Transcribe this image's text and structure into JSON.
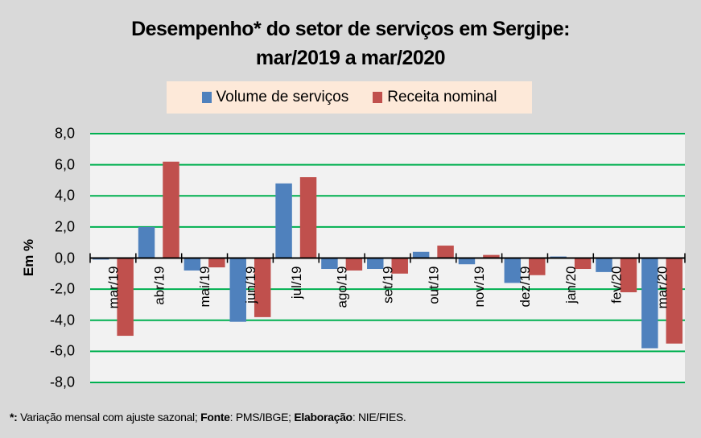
{
  "chart_data": {
    "type": "bar",
    "title_line1": "Desempenho* do setor de serviços em Sergipe:",
    "title_line2": "mar/2019 a mar/2020",
    "xlabel": "",
    "ylabel": "Em %",
    "ylim": [
      -8,
      8
    ],
    "yticks": [
      8,
      6,
      4,
      2,
      0,
      -2,
      -4,
      -6,
      -8
    ],
    "ytick_labels": [
      "8,0",
      "6,0",
      "4,0",
      "2,0",
      "0,0",
      "-2,0",
      "-4,0",
      "-6,0",
      "-8,0"
    ],
    "grid": true,
    "legend_position": "top",
    "categories": [
      "mar/19",
      "abr/19",
      "mai/19",
      "jun/19",
      "jul/19",
      "ago/19",
      "set/19",
      "out/19",
      "nov/19",
      "dez/19",
      "jan/20",
      "fev/20",
      "mar/20"
    ],
    "series": [
      {
        "name": "Volume de serviços",
        "color": "#4f81bd",
        "values": [
          -0.1,
          2.0,
          -0.8,
          -4.1,
          4.8,
          -0.7,
          -0.7,
          0.4,
          -0.4,
          -1.6,
          0.1,
          -0.9,
          -5.8
        ]
      },
      {
        "name": "Receita nominal",
        "color": "#c0504d",
        "values": [
          -5.0,
          6.2,
          -0.6,
          -3.8,
          5.2,
          -0.8,
          -1.0,
          0.8,
          0.2,
          -1.1,
          -0.7,
          -2.2,
          -5.5
        ]
      }
    ]
  },
  "colors": {
    "background": "#d9d9d9",
    "plot_background": "#f2f2f2",
    "gridline": "#00b050",
    "legend_background": "#fde9d9"
  },
  "footnote": {
    "star": "*:",
    "text1": " Variação mensal com ajuste sazonal; ",
    "fonte_label": "Fonte",
    "text2": ": PMS/IBGE; ",
    "elab_label": "Elaboração",
    "text3": ": NIE/FIES."
  }
}
